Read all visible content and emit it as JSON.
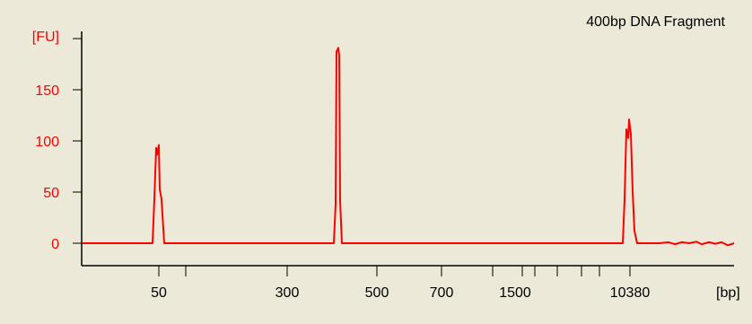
{
  "chart_data": {
    "type": "line",
    "title": "400bp DNA Fragment",
    "ylabel": "[FU]",
    "xlabel": "[bp]",
    "ylim": [
      -15,
      205
    ],
    "yticks": [
      "0",
      "50",
      "100",
      "150"
    ],
    "xticks": [
      "50",
      "300",
      "500",
      "700",
      "1500",
      "10380"
    ],
    "series": [
      {
        "color": "#ff0000",
        "peaks": [
          {
            "label": "50",
            "height": 96
          },
          {
            "label": "400",
            "height": 191
          },
          {
            "label": "10380",
            "height": 121
          }
        ]
      }
    ]
  },
  "colors": {
    "background": "#ece9d8",
    "trace": "#ff0000",
    "axis_text": "#ff0000"
  }
}
